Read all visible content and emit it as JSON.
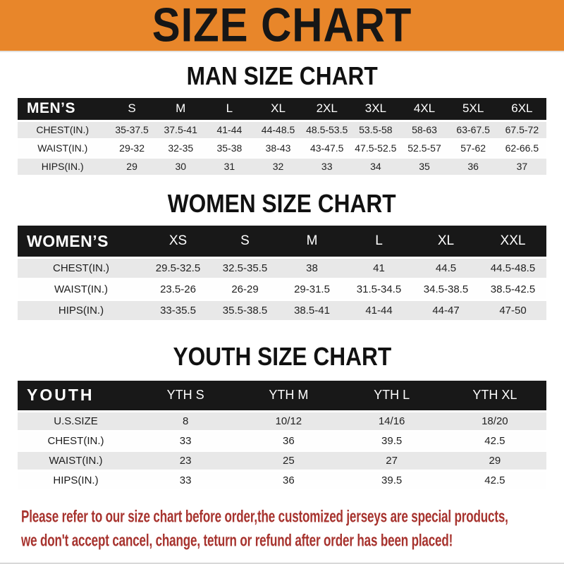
{
  "banner": {
    "title": "SIZE CHART"
  },
  "colors": {
    "banner_bg": "#e8862a",
    "banner_text": "#161616",
    "table_header_bg": "#181818",
    "table_header_text": "#ffffff",
    "row_stripe": "#e8e8e8",
    "footer_text": "#a7332e"
  },
  "sections": [
    {
      "heading": "MAN SIZE CHART",
      "table": {
        "corner_label": "MEN’S",
        "sizes": [
          "S",
          "M",
          "L",
          "XL",
          "2XL",
          "3XL",
          "4XL",
          "5XL",
          "6XL"
        ],
        "rows": [
          {
            "label": "CHEST(IN.)",
            "values": [
              "35-37.5",
              "37.5-41",
              "41-44",
              "44-48.5",
              "48.5-53.5",
              "53.5-58",
              "58-63",
              "63-67.5",
              "67.5-72"
            ]
          },
          {
            "label": "WAIST(IN.)",
            "values": [
              "29-32",
              "32-35",
              "35-38",
              "38-43",
              "43-47.5",
              "47.5-52.5",
              "52.5-57",
              "57-62",
              "62-66.5"
            ]
          },
          {
            "label": "HIPS(IN.)",
            "values": [
              "29",
              "30",
              "31",
              "32",
              "33",
              "34",
              "35",
              "36",
              "37"
            ]
          }
        ]
      }
    },
    {
      "heading": "WOMEN SIZE CHART",
      "table": {
        "corner_label": "WOMEN’S",
        "sizes": [
          "XS",
          "S",
          "M",
          "L",
          "XL",
          "XXL"
        ],
        "rows": [
          {
            "label": "CHEST(IN.)",
            "values": [
              "29.5-32.5",
              "32.5-35.5",
              "38",
              "41",
              "44.5",
              "44.5-48.5"
            ]
          },
          {
            "label": "WAIST(IN.)",
            "values": [
              "23.5-26",
              "26-29",
              "29-31.5",
              "31.5-34.5",
              "34.5-38.5",
              "38.5-42.5"
            ]
          },
          {
            "label": "HIPS(IN.)",
            "values": [
              "33-35.5",
              "35.5-38.5",
              "38.5-41",
              "41-44",
              "44-47",
              "47-50"
            ]
          }
        ]
      }
    },
    {
      "heading": "YOUTH SIZE CHART",
      "table": {
        "corner_label": "YOUTH",
        "sizes": [
          "YTH S",
          "YTH M",
          "YTH L",
          "YTH XL"
        ],
        "rows": [
          {
            "label": "U.S.SIZE",
            "values": [
              "8",
              "10/12",
              "14/16",
              "18/20"
            ]
          },
          {
            "label": "CHEST(IN.)",
            "values": [
              "33",
              "36",
              "39.5",
              "42.5"
            ]
          },
          {
            "label": "WAIST(IN.)",
            "values": [
              "23",
              "25",
              "27",
              "29"
            ]
          },
          {
            "label": "HIPS(IN.)",
            "values": [
              "33",
              "36",
              "39.5",
              "42.5"
            ]
          }
        ]
      }
    }
  ],
  "footer": {
    "line1": "Please refer to our size chart before order,the customized jerseys are special products,",
    "line2": "we don't accept cancel, change, teturn or refund after order has been placed!"
  }
}
